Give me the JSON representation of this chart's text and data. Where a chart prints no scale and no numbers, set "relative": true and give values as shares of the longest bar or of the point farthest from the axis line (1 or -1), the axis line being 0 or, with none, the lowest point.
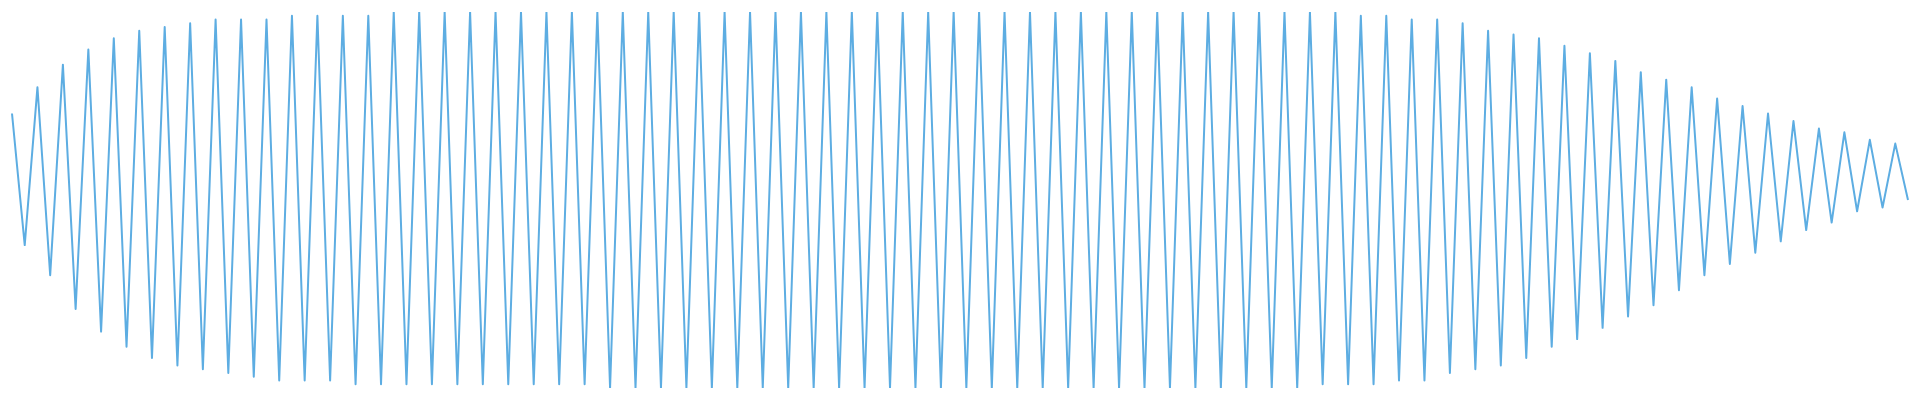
{
  "chart_data": {
    "type": "line",
    "relative": true,
    "marker": "none",
    "grid": false,
    "legend": false,
    "categories": [
      null,
      null,
      null,
      null,
      null,
      null,
      null,
      null,
      null,
      null,
      null,
      null,
      null,
      null,
      null,
      null,
      null,
      null,
      null,
      null,
      null,
      null,
      null,
      null,
      null,
      null,
      null,
      null,
      null,
      null,
      null,
      null,
      null,
      null,
      null,
      null,
      null,
      null,
      null,
      null,
      null,
      null,
      null,
      null,
      null,
      null,
      null,
      null,
      null,
      null,
      null,
      null,
      null,
      null,
      null,
      null,
      null,
      null,
      null,
      null,
      null,
      null,
      null,
      null,
      null,
      null,
      null,
      null,
      null,
      null,
      null,
      null,
      null,
      null,
      null,
      null,
      null,
      null,
      null,
      null,
      null,
      null,
      null,
      null,
      null,
      null,
      null,
      null,
      null,
      null,
      null,
      null,
      null,
      null,
      null,
      null,
      null,
      null,
      null,
      null,
      null,
      null,
      null,
      null,
      null,
      null,
      null,
      null,
      null,
      null,
      null,
      null,
      null,
      null,
      null,
      null,
      null,
      null,
      null,
      null,
      null,
      null,
      null,
      null,
      null,
      null,
      null,
      null,
      null,
      null,
      null,
      null,
      null,
      null,
      null,
      null,
      null,
      null,
      null,
      null,
      null,
      null,
      null,
      null,
      null,
      null,
      null,
      null,
      null,
      null
    ],
    "series": [
      {
        "color": "#5dade2",
        "values": [
          0.73,
          0.38,
          0.8,
          0.3,
          0.86,
          0.21,
          0.9,
          0.15,
          0.93,
          0.11,
          0.95,
          0.08,
          0.96,
          0.06,
          0.97,
          0.05,
          0.98,
          0.04,
          0.98,
          0.03,
          0.98,
          0.02,
          0.99,
          0.02,
          0.99,
          0.02,
          0.99,
          0.01,
          0.99,
          0.01,
          1,
          0.01,
          1,
          0.01,
          1,
          0.01,
          1,
          0.01,
          1,
          0.01,
          1,
          0.01,
          1,
          0.01,
          1,
          0.01,
          1,
          0,
          1,
          0,
          1,
          0,
          1,
          0,
          1,
          0,
          1,
          0,
          1,
          0,
          1,
          0,
          1,
          0,
          1,
          0,
          1,
          0,
          1,
          0,
          1,
          0,
          1,
          0,
          1,
          0,
          1,
          0,
          1,
          0,
          1,
          0,
          1,
          0,
          1,
          0,
          1,
          0,
          1,
          0,
          1,
          0,
          1,
          0,
          1,
          0,
          1,
          0,
          1,
          0,
          1,
          0,
          1,
          0.01,
          1,
          0.01,
          0.99,
          0.01,
          0.99,
          0.02,
          0.98,
          0.02,
          0.98,
          0.04,
          0.97,
          0.05,
          0.95,
          0.06,
          0.94,
          0.08,
          0.93,
          0.11,
          0.91,
          0.13,
          0.89,
          0.16,
          0.87,
          0.19,
          0.84,
          0.22,
          0.82,
          0.26,
          0.8,
          0.3,
          0.77,
          0.33,
          0.75,
          0.36,
          0.73,
          0.39,
          0.71,
          0.42,
          0.69,
          0.44,
          0.68,
          0.47,
          0.66,
          0.48,
          0.65,
          0.5
        ]
      }
    ]
  }
}
